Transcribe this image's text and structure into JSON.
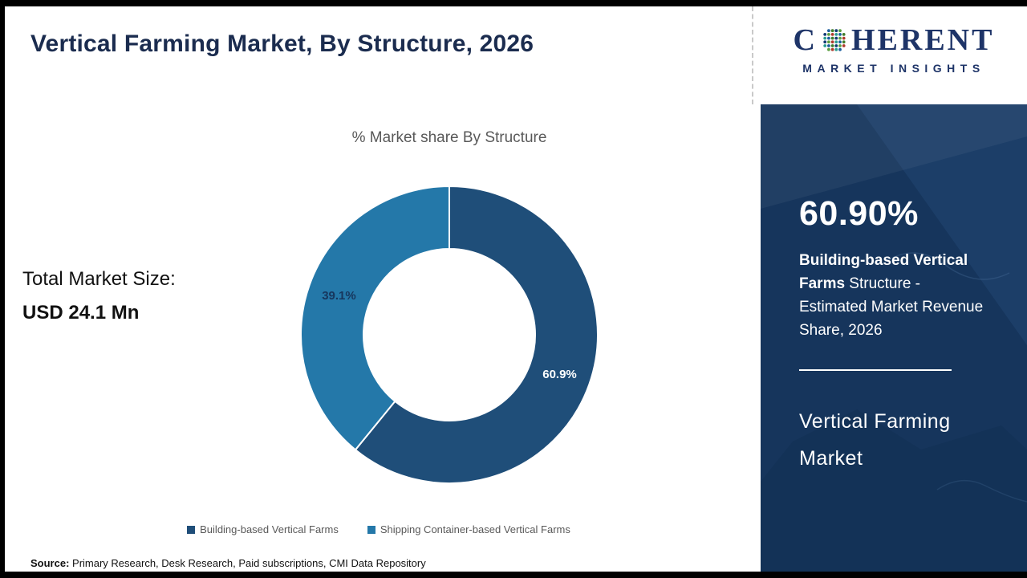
{
  "header": {
    "title": "Vertical Farming Market, By Structure, 2026"
  },
  "logo": {
    "prefix": "C",
    "suffix": "HERENT",
    "tagline": "MARKET INSIGHTS"
  },
  "stats": {
    "total_label": "Total Market Size:",
    "total_value": "USD 24.1 Mn"
  },
  "chart_data": {
    "type": "pie",
    "donut": true,
    "title": "% Market share By Structure",
    "categories": [
      "Building-based Vertical Farms",
      "Shipping Container-based Vertical Farms"
    ],
    "values": [
      60.9,
      39.1
    ],
    "labels": [
      "60.9%",
      "39.1%"
    ],
    "colors": [
      "#1f4e79",
      "#2478a9"
    ],
    "label_colors": [
      "#ffffff",
      "#17365d"
    ],
    "legend_position": "bottom"
  },
  "sidebar": {
    "share_value": "60.90%",
    "share_desc_bold": "Building-based Vertical Farms",
    "share_desc_rest": " Structure - Estimated Market Revenue Share, 2026",
    "market_line1": "Vertical Farming",
    "market_line2": "Market"
  },
  "footer": {
    "source_label": "Source:",
    "source_text": " Primary Research, Desk Research, Paid subscriptions, CMI Data Repository"
  }
}
